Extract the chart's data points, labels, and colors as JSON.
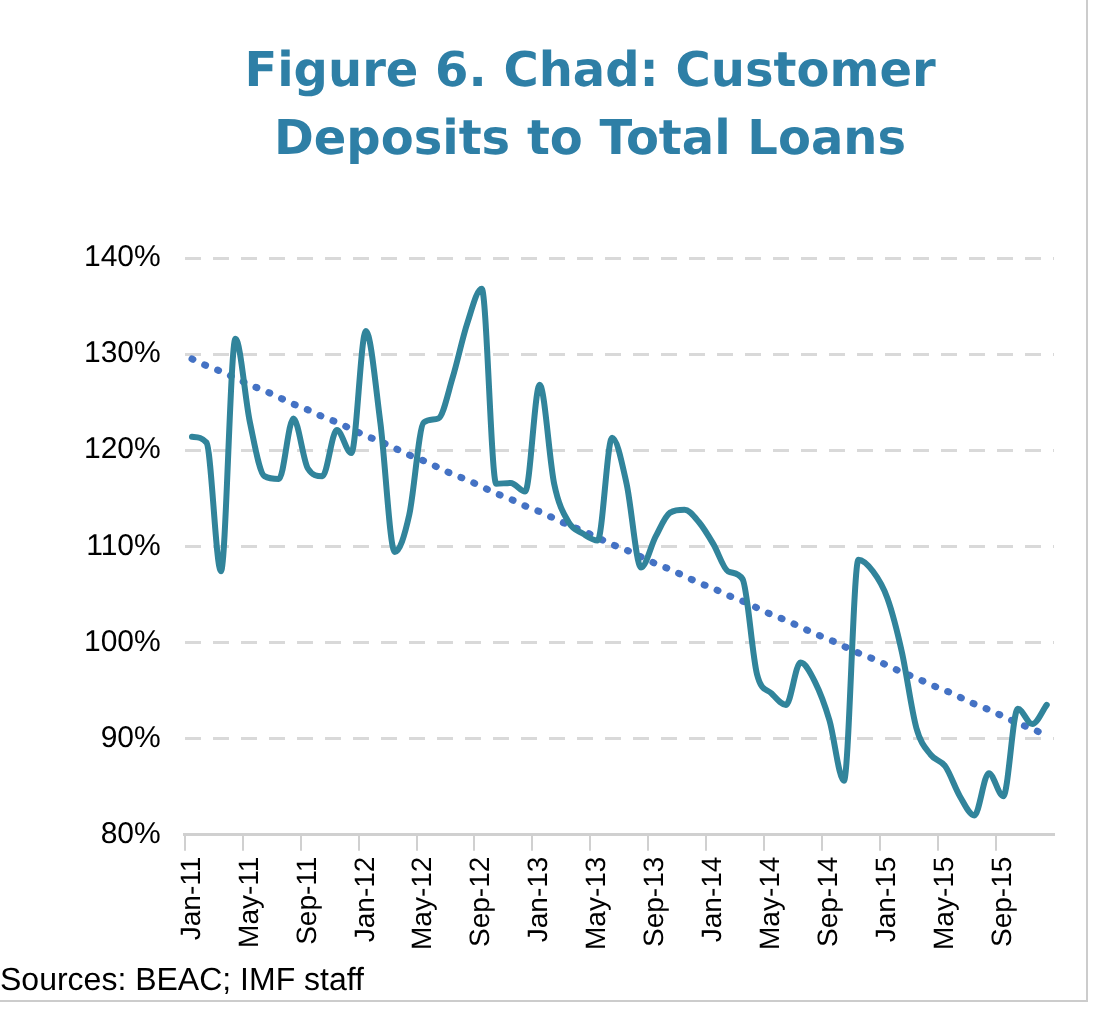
{
  "chart_data": {
    "type": "line",
    "title": "Figure 6. Chad: Customer Deposits to Total Loans",
    "categories": [
      "Jan-11",
      null,
      null,
      null,
      "May-11",
      null,
      null,
      null,
      "Sep-11",
      null,
      null,
      null,
      "Jan-12",
      null,
      null,
      null,
      "May-12",
      null,
      null,
      null,
      "Sep-12",
      null,
      null,
      null,
      "Jan-13",
      null,
      null,
      null,
      "May-13",
      null,
      null,
      null,
      "Sep-13",
      null,
      null,
      null,
      "Jan-14",
      null,
      null,
      null,
      "May-14",
      null,
      null,
      null,
      "Sep-14",
      null,
      null,
      null,
      "Jan-15",
      null,
      null,
      null,
      "May-15",
      null,
      null,
      null,
      "Sep-15",
      null,
      null,
      null
    ],
    "series": [
      {
        "color": "#31849b",
        "line_style": "solid",
        "values": [
          121.4,
          120.8,
          107.4,
          131.6,
          122.9,
          117.3,
          117,
          123.3,
          118.1,
          117.3,
          122.1,
          119.7,
          132.4,
          122.9,
          109.4,
          113.3,
          122.9,
          123.3,
          127.6,
          133.2,
          136.8,
          116.5,
          116.6,
          115.7,
          126.8,
          116.5,
          112.5,
          111.3,
          110.6,
          121.3,
          116.5,
          107.8,
          111,
          113.5,
          113.8,
          112.5,
          110.2,
          107.4,
          106.6,
          96.7,
          94.7,
          93.5,
          97.9,
          95.9,
          91.9,
          85.6,
          108.6,
          107.4,
          104.6,
          99,
          91.1,
          88.3,
          87.1,
          84,
          82,
          86.4,
          84,
          93.1,
          91.5,
          93.5
        ]
      },
      {
        "color": "#4472c4",
        "line_style": "dotted",
        "values": [
          129.5,
          128.8,
          128.2,
          127.5,
          126.8,
          126.2,
          125.5,
          124.8,
          124.2,
          123.5,
          122.9,
          122.2,
          121.5,
          120.9,
          120.2,
          119.5,
          118.9,
          118.2,
          117.5,
          116.9,
          116.2,
          115.5,
          114.9,
          114.2,
          113.6,
          112.9,
          112.2,
          111.6,
          110.9,
          110.2,
          109.6,
          108.9,
          108.2,
          107.6,
          106.9,
          106.2,
          105.6,
          104.9,
          104.3,
          103.6,
          102.9,
          102.3,
          101.6,
          100.9,
          100.3,
          99.6,
          98.9,
          98.3,
          97.6,
          96.9,
          96.3,
          95.6,
          95.0,
          94.3,
          93.6,
          93.0,
          92.3,
          91.6,
          91.0,
          90.3
        ]
      }
    ],
    "ylim": [
      80,
      140
    ],
    "yticks": [
      {
        "value": 80,
        "label": "80%"
      },
      {
        "value": 90,
        "label": "90%"
      },
      {
        "value": 100,
        "label": "100%"
      },
      {
        "value": 110,
        "label": "110%"
      },
      {
        "value": 120,
        "label": "120%"
      },
      {
        "value": 130,
        "label": "130%"
      },
      {
        "value": 140,
        "label": "140%"
      }
    ],
    "grid": "y",
    "legend": false,
    "marker": "none",
    "annotations": [
      "Sources: BEAC; IMF staff"
    ]
  }
}
